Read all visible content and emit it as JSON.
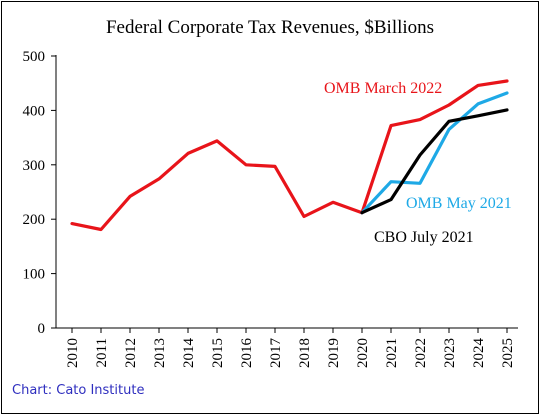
{
  "credit": "Chart: Cato Institute",
  "chart_data": {
    "type": "line",
    "title": "Federal Corporate Tax Revenues, $Billions",
    "xlabel": "",
    "ylabel": "",
    "ylim": [
      0,
      500
    ],
    "yticks": [
      0,
      100,
      200,
      300,
      400,
      500
    ],
    "x": [
      "2010",
      "2011",
      "2012",
      "2013",
      "2014",
      "2015",
      "2016",
      "2017",
      "2018",
      "2019",
      "2020",
      "2021",
      "2022",
      "2023",
      "2024",
      "2025"
    ],
    "grid": false,
    "legend": "inline labels",
    "series": [
      {
        "name": "OMB March 2022",
        "color": "#e8141a",
        "values": [
          192,
          181,
          242,
          274,
          321,
          344,
          300,
          297,
          205,
          231,
          212,
          372,
          383,
          410,
          446,
          454
        ]
      },
      {
        "name": "CBO July 2021",
        "color": "#000000",
        "values": [
          null,
          null,
          null,
          null,
          null,
          null,
          null,
          null,
          null,
          null,
          212,
          236,
          318,
          380,
          390,
          401
        ]
      },
      {
        "name": "OMB May 2021",
        "color": "#1ea9e6",
        "values": [
          null,
          null,
          null,
          null,
          null,
          null,
          null,
          null,
          null,
          null,
          212,
          269,
          266,
          365,
          412,
          432
        ]
      }
    ]
  }
}
